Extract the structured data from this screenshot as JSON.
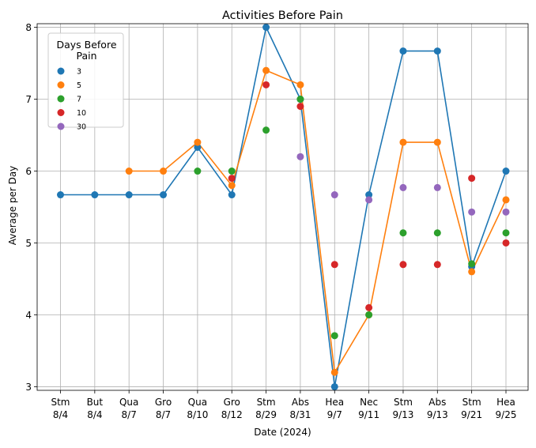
{
  "chart_data": {
    "type": "scatter",
    "title": "Activities Before Pain",
    "xlabel": "Date (2024)",
    "ylabel": "Average per Day",
    "ylim": [
      2.95,
      8.05
    ],
    "yticks": [
      3,
      4,
      5,
      6,
      7,
      8
    ],
    "grid": true,
    "legend": {
      "title": "Days Before Pain",
      "title_lines": [
        "Days Before",
        "Pain"
      ],
      "placement": "top-left"
    },
    "categories": [
      {
        "abbr": "Stm",
        "date": "8/4"
      },
      {
        "abbr": "But",
        "date": "8/4"
      },
      {
        "abbr": "Qua",
        "date": "8/7"
      },
      {
        "abbr": "Gro",
        "date": "8/7"
      },
      {
        "abbr": "Qua",
        "date": "8/10"
      },
      {
        "abbr": "Gro",
        "date": "8/12"
      },
      {
        "abbr": "Stm",
        "date": "8/29"
      },
      {
        "abbr": "Abs",
        "date": "8/31"
      },
      {
        "abbr": "Hea",
        "date": "9/7"
      },
      {
        "abbr": "Nec",
        "date": "9/11"
      },
      {
        "abbr": "Stm",
        "date": "9/13"
      },
      {
        "abbr": "Abs",
        "date": "9/13"
      },
      {
        "abbr": "Stm",
        "date": "9/21"
      },
      {
        "abbr": "Hea",
        "date": "9/25"
      }
    ],
    "series": [
      {
        "name": "3",
        "color": "#1f77b4",
        "line": true,
        "values": [
          5.67,
          5.67,
          5.67,
          5.67,
          6.33,
          5.67,
          8.0,
          7.0,
          3.0,
          5.67,
          7.67,
          7.67,
          4.67,
          6.0
        ]
      },
      {
        "name": "5",
        "color": "#ff7f0e",
        "line": true,
        "values": [
          null,
          null,
          6.0,
          6.0,
          6.4,
          5.8,
          7.4,
          7.2,
          3.2,
          4.0,
          6.4,
          6.4,
          4.6,
          5.6
        ]
      },
      {
        "name": "7",
        "color": "#2ca02c",
        "line": false,
        "values": [
          null,
          null,
          null,
          null,
          6.0,
          6.0,
          6.57,
          7.0,
          3.71,
          4.0,
          5.14,
          5.14,
          4.71,
          5.14
        ]
      },
      {
        "name": "10",
        "color": "#d62728",
        "line": false,
        "values": [
          null,
          null,
          null,
          null,
          null,
          5.9,
          7.2,
          6.9,
          4.7,
          4.1,
          4.7,
          4.7,
          5.9,
          5.0
        ]
      },
      {
        "name": "30",
        "color": "#9467bd",
        "line": false,
        "values": [
          null,
          null,
          null,
          null,
          null,
          null,
          null,
          6.2,
          5.67,
          5.6,
          5.77,
          5.77,
          5.43,
          5.43
        ]
      }
    ]
  }
}
